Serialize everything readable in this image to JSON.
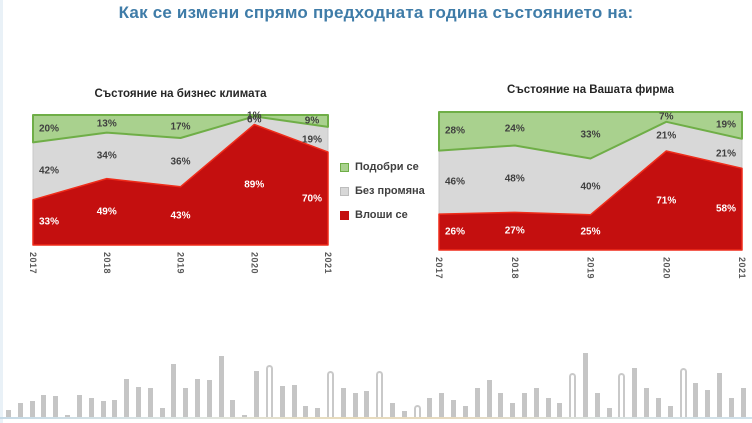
{
  "page_title": "Как се измени спрямо предходната година състоянието на:",
  "colors": {
    "title": "#3f7ca8",
    "improved_fill": "#a9d18e",
    "improved_line": "#6fae47",
    "nochange_fill": "#d8d8d8",
    "nochange_line": "#c8c8c8",
    "worsened_fill": "#c40f0f",
    "worsened_line": "#ef2c1a",
    "label_dark": "#3f3f3f",
    "label_light": "#ffffff"
  },
  "legend": {
    "items": [
      {
        "label": "Подобри се",
        "fill": "#a9d18e",
        "border": "#6fae47"
      },
      {
        "label": "Без промяна",
        "fill": "#d8d8d8",
        "border": "#bdbdbd"
      },
      {
        "label": "Влоши се",
        "fill": "#c40f0f",
        "border": "#c40f0f"
      }
    ]
  },
  "chart_data": [
    {
      "type": "area",
      "stacked": true,
      "title": "Състояние на бизнес климата",
      "x": [
        "2017",
        "2018",
        "2019",
        "2020",
        "2021"
      ],
      "series": [
        {
          "name": "Подобри се",
          "values": [
            20,
            13,
            17,
            1,
            9
          ]
        },
        {
          "name": "Без промяна",
          "values": [
            42,
            34,
            36,
            6,
            19
          ]
        },
        {
          "name": "Влоши се",
          "values": [
            33,
            49,
            43,
            89,
            70
          ]
        }
      ],
      "ylim": [
        0,
        100
      ],
      "grid": false,
      "legend_position": "right-of-chart",
      "data_labels": "percent"
    },
    {
      "type": "area",
      "stacked": true,
      "title": "Състояние на Вашата фирма",
      "x": [
        "2017",
        "2018",
        "2019",
        "2020",
        "2021"
      ],
      "series": [
        {
          "name": "Подобри се",
          "values": [
            28,
            24,
            33,
            7,
            19
          ]
        },
        {
          "name": "Без промяна",
          "values": [
            46,
            48,
            40,
            21,
            21
          ]
        },
        {
          "name": "Влоши се",
          "values": [
            26,
            27,
            25,
            71,
            58
          ]
        }
      ],
      "ylim": [
        0,
        100
      ],
      "grid": false,
      "legend_position": "left-of-chart",
      "data_labels": "percent"
    }
  ],
  "decor_bars": {
    "heights": [
      8,
      15,
      17,
      23,
      22,
      3,
      23,
      20,
      17,
      18,
      39,
      31,
      30,
      10,
      54,
      30,
      39,
      38,
      62,
      18,
      3,
      47,
      53,
      32,
      33,
      12,
      10,
      47,
      30,
      25,
      27,
      47,
      15,
      7,
      13,
      20,
      25,
      18,
      12,
      30,
      38,
      25,
      15,
      25,
      30,
      20,
      15,
      45,
      65,
      25,
      10,
      45,
      50,
      30,
      20,
      12,
      50,
      35,
      28,
      45,
      20,
      30
    ],
    "hollow_indices": [
      22,
      27,
      31,
      34,
      47,
      51,
      56
    ]
  }
}
